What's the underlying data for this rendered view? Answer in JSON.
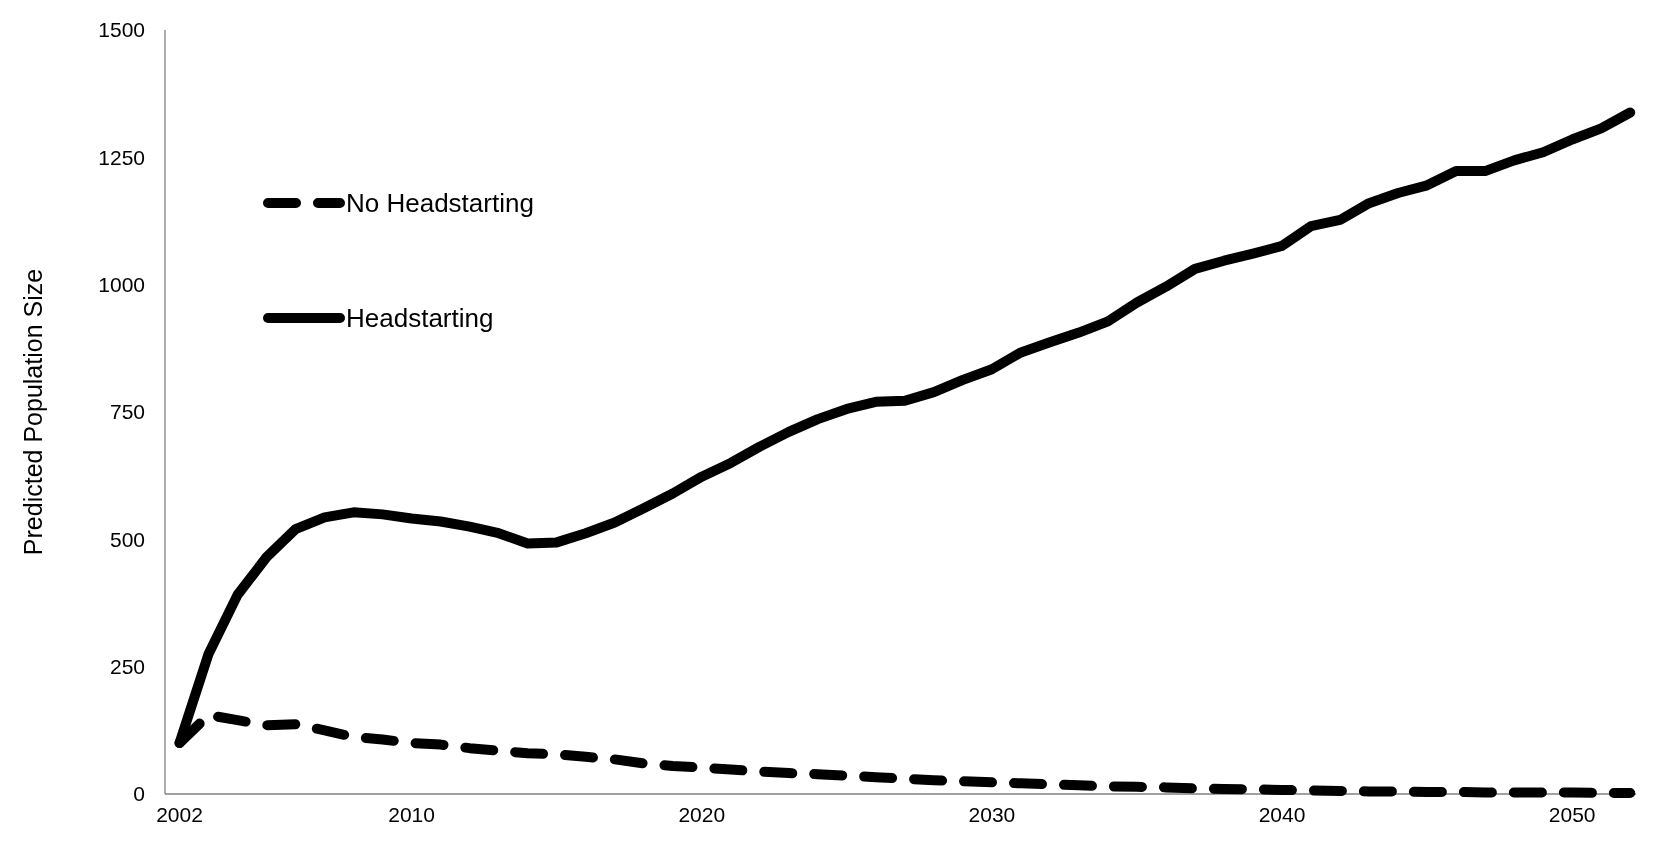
{
  "chart_data": {
    "type": "line",
    "ylabel": "Predicted Population Size",
    "x": [
      2002,
      2003,
      2004,
      2005,
      2006,
      2007,
      2008,
      2009,
      2010,
      2011,
      2012,
      2013,
      2014,
      2015,
      2016,
      2017,
      2018,
      2019,
      2020,
      2021,
      2022,
      2023,
      2024,
      2025,
      2026,
      2027,
      2028,
      2029,
      2030,
      2031,
      2032,
      2033,
      2034,
      2035,
      2036,
      2037,
      2038,
      2039,
      2040,
      2041,
      2042,
      2043,
      2044,
      2045,
      2046,
      2047,
      2048,
      2049,
      2050,
      2051,
      2052
    ],
    "series": [
      {
        "name": "No Headstarting",
        "color": "#000000",
        "line_style": "dashed",
        "values": [
          100,
          155,
          145,
          135,
          137,
          125,
          112,
          107,
          100,
          97,
          90,
          85,
          80,
          78,
          73,
          68,
          60,
          55,
          52,
          48,
          44,
          41,
          39,
          36,
          33,
          30,
          27,
          25,
          23,
          21,
          19,
          17,
          15,
          14,
          13,
          11,
          10,
          9,
          8,
          7,
          6,
          5,
          5,
          4,
          4,
          3,
          3,
          3,
          3,
          2,
          2
        ]
      },
      {
        "name": "Headstarting",
        "color": "#000000",
        "line_style": "solid",
        "values": [
          100,
          275,
          391,
          465,
          520,
          543,
          553,
          549,
          541,
          535,
          525,
          512,
          492,
          494,
          512,
          533,
          561,
          590,
          623,
          650,
          682,
          711,
          736,
          756,
          770,
          772,
          789,
          813,
          834,
          867,
          887,
          906,
          928,
          965,
          996,
          1031,
          1047,
          1061,
          1076,
          1115,
          1127,
          1160,
          1180,
          1195,
          1223,
          1223,
          1244,
          1260,
          1285,
          1307,
          1338
        ]
      }
    ],
    "xlim": [
      2001.5,
      2052.2
    ],
    "xticks": [
      2002,
      2010,
      2020,
      2030,
      2040,
      2050
    ],
    "ylim": [
      0,
      1500
    ],
    "yticks": [
      0,
      250,
      500,
      750,
      1000,
      1250,
      1500
    ],
    "grid": false,
    "legend": "top left",
    "marker": "none"
  }
}
